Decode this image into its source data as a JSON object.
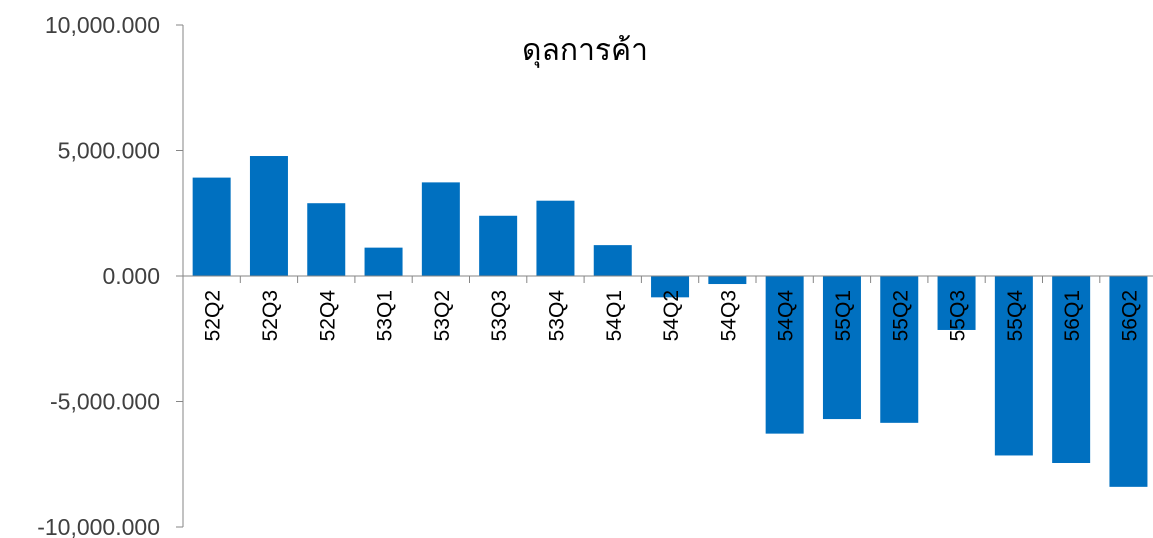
{
  "chart_data": {
    "type": "bar",
    "title": "ดุลการค้า",
    "xlabel": "",
    "ylabel": "",
    "ylim": [
      -10000,
      10000
    ],
    "y_ticks": [
      10000,
      5000,
      0,
      -5000,
      -10000
    ],
    "y_tick_labels": [
      "10,000.000",
      "5,000.000",
      "0.000",
      "-5,000.000",
      "-10,000.000"
    ],
    "grid": false,
    "legend": "none",
    "bar_color": "#0070c0",
    "categories": [
      "52Q2",
      "52Q3",
      "52Q4",
      "53Q1",
      "53Q2",
      "53Q3",
      "53Q4",
      "54Q1",
      "54Q2",
      "54Q3",
      "54Q4",
      "55Q1",
      "55Q2",
      "55Q3",
      "55Q4",
      "56Q1",
      "56Q2"
    ],
    "values": [
      3920,
      4780,
      2900,
      1130,
      3730,
      2400,
      3000,
      1230,
      -850,
      -320,
      -6280,
      -5700,
      -5850,
      -2150,
      -7150,
      -7450,
      -8400
    ]
  }
}
